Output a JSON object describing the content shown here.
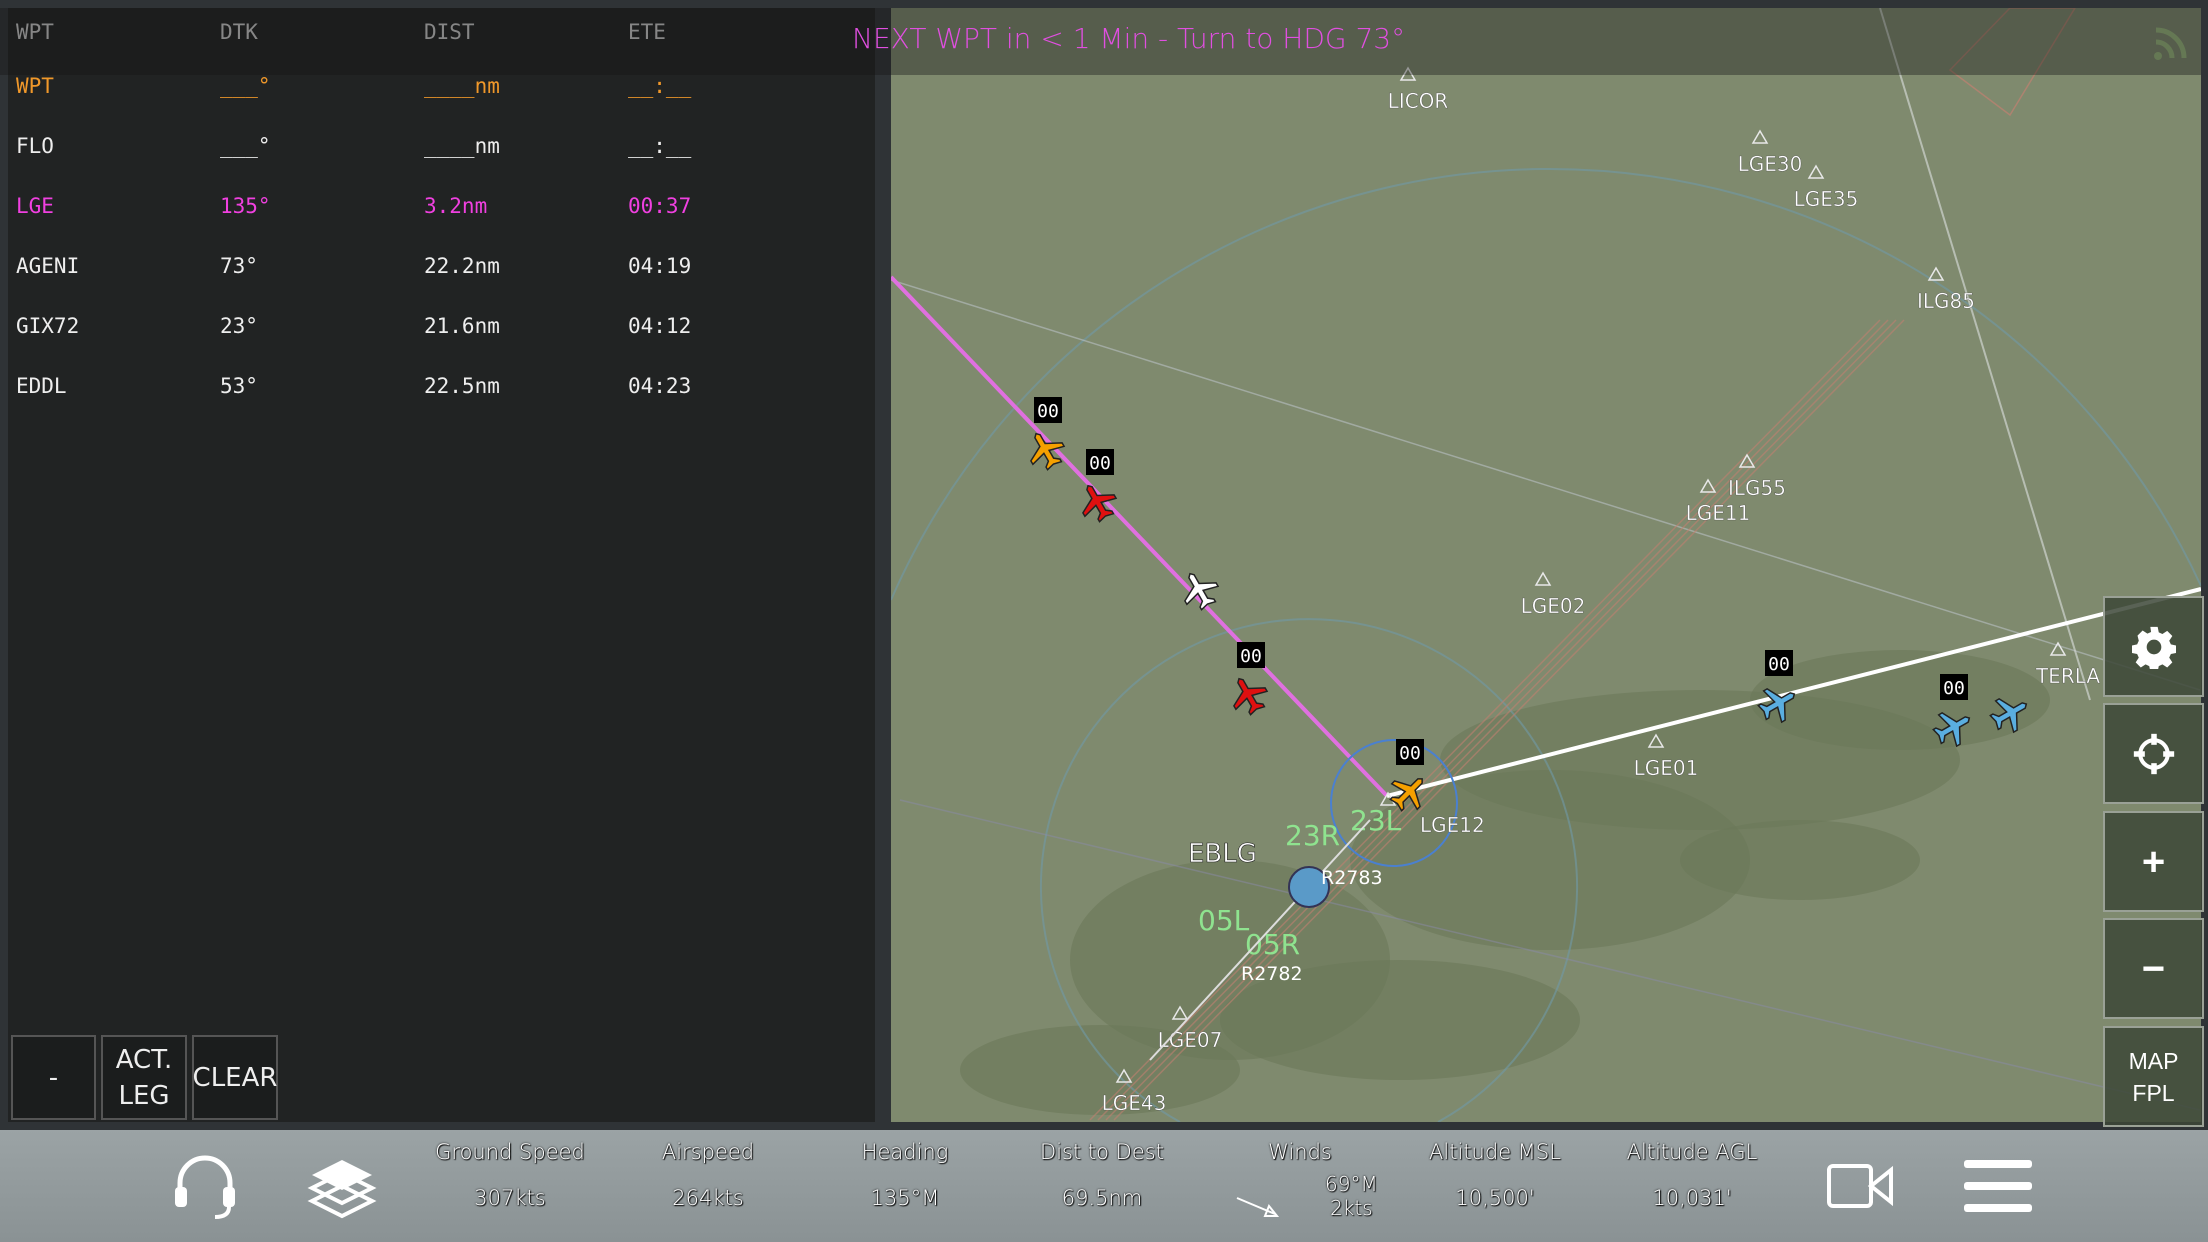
{
  "banner": {
    "text": "NEXT WPT in < 1 Min - Turn to HDG 73°",
    "signal_icon": "signal-icon"
  },
  "flight_plan": {
    "headers": [
      "WPT",
      "DTK",
      "DIST",
      "ETE"
    ],
    "rows": [
      {
        "wpt": "WPT",
        "dtk": "___°",
        "dist": "____nm",
        "ete": "__:__",
        "state": "active-placeholder"
      },
      {
        "wpt": "FLO",
        "dtk": "___°",
        "dist": "____nm",
        "ete": "__:__",
        "state": "normal"
      },
      {
        "wpt": "LGE",
        "dtk": "135°",
        "dist": "3.2nm",
        "ete": "00:37",
        "state": "next"
      },
      {
        "wpt": "AGENI",
        "dtk": "73°",
        "dist": "22.2nm",
        "ete": "04:19",
        "state": "normal"
      },
      {
        "wpt": "GIX72",
        "dtk": "23°",
        "dist": "21.6nm",
        "ete": "04:12",
        "state": "normal"
      },
      {
        "wpt": "EDDL",
        "dtk": "53°",
        "dist": "22.5nm",
        "ete": "04:23",
        "state": "normal"
      }
    ],
    "buttons": {
      "minus": "-",
      "act_leg_1": "ACT.",
      "act_leg_2": "LEG",
      "clear": "CLEAR"
    }
  },
  "map": {
    "waypoints": [
      "LICOR",
      "LGE30",
      "LGE35",
      "ILG85",
      "ILG55",
      "LGE11",
      "LGE02",
      "TERLA",
      "LGE01",
      "LGE12",
      "LGE07",
      "LGE43"
    ],
    "airport": "EBLG",
    "runways": [
      "23L",
      "23R",
      "05L",
      "05R"
    ],
    "routes": [
      "R2783",
      "R2782"
    ],
    "aircraft_tags": [
      "00",
      "00",
      "00",
      "00",
      "00",
      "00"
    ],
    "colors": {
      "route_active": "#e070e0",
      "route": "#ffffff",
      "own_ship": "#f5a000",
      "traffic_red": "#e01010",
      "traffic_blue": "#5aaee0",
      "runway_label": "#8fe38f"
    }
  },
  "side_buttons": {
    "settings": "gear-icon",
    "center": "crosshair-icon",
    "zoom_in": "+",
    "zoom_out": "−",
    "map_1": "MAP",
    "map_2": "FPL"
  },
  "status_bar": {
    "ground_speed": {
      "label": "Ground Speed",
      "value": "307kts"
    },
    "airspeed": {
      "label": "Airspeed",
      "value": "264kts"
    },
    "heading": {
      "label": "Heading",
      "value": "135°M"
    },
    "dist_to_dest": {
      "label": "Dist to Dest",
      "value": "69.5nm"
    },
    "winds": {
      "label": "Winds",
      "dir": "69°M",
      "speed": "2kts"
    },
    "altitude_msl": {
      "label": "Altitude MSL",
      "value": "10,500'"
    },
    "altitude_agl": {
      "label": "Altitude AGL",
      "value": "10,031'"
    }
  }
}
